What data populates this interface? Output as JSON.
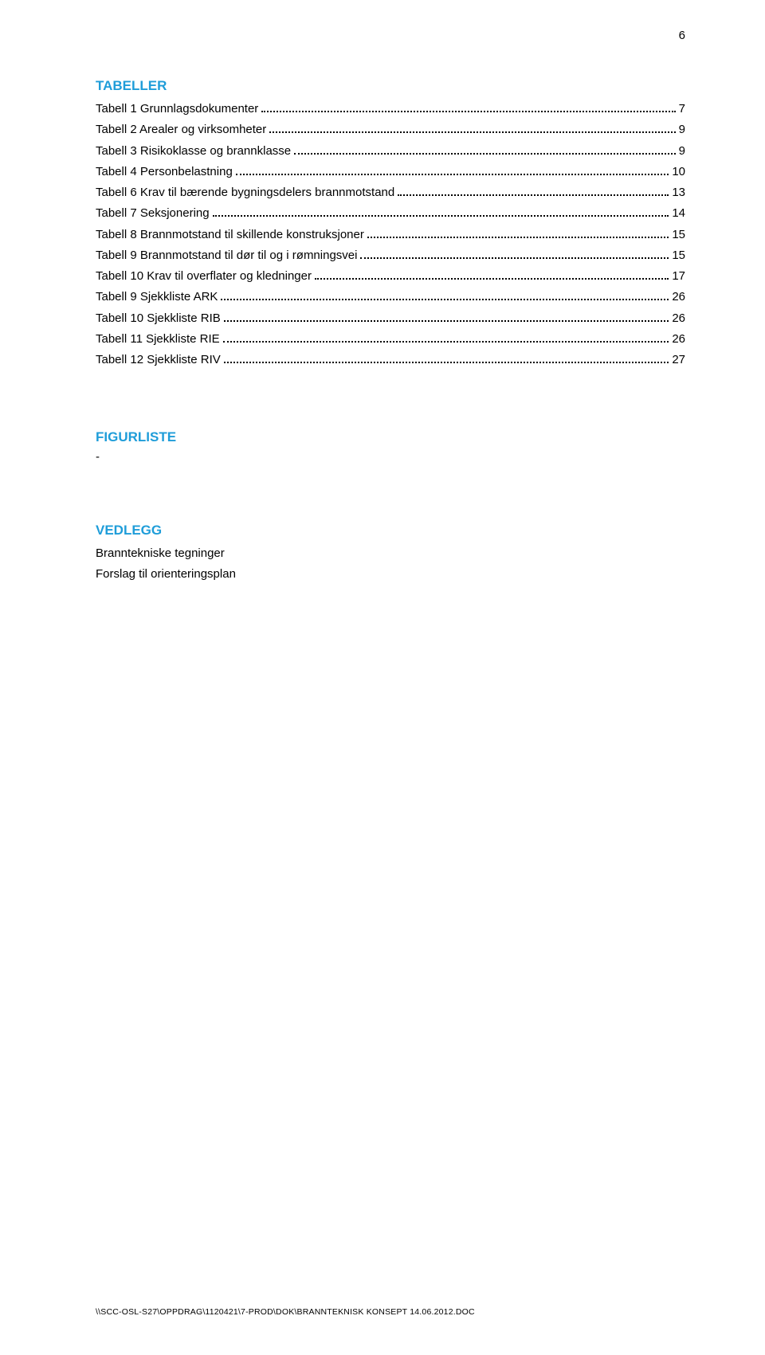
{
  "page_number": "6",
  "colors": {
    "heading": "#1f9dd9",
    "text": "#000000",
    "background": "#ffffff",
    "dot": "#000000"
  },
  "typography": {
    "body_font": "Verdana, Geneva, sans-serif",
    "body_size_pt": 11,
    "heading_size_pt": 13,
    "heading_weight": "bold",
    "footer_size_pt": 8
  },
  "sections": {
    "tabeller": {
      "title": "TABELLER",
      "entries": [
        {
          "label": "Tabell 1 Grunnlagsdokumenter",
          "page": "7"
        },
        {
          "label": "Tabell 2 Arealer og virksomheter",
          "page": "9"
        },
        {
          "label": "Tabell 3 Risikoklasse og brannklasse",
          "page": "9"
        },
        {
          "label": "Tabell 4 Personbelastning",
          "page": "10"
        },
        {
          "label": "Tabell 6 Krav til bærende bygningsdelers brannmotstand",
          "page": "13"
        },
        {
          "label": "Tabell 7 Seksjonering",
          "page": "14"
        },
        {
          "label": "Tabell 8 Brannmotstand til skillende konstruksjoner",
          "page": "15"
        },
        {
          "label": "Tabell 9 Brannmotstand til dør til og i rømningsvei",
          "page": "15"
        },
        {
          "label": "Tabell 10 Krav til overflater og kledninger",
          "page": "17"
        },
        {
          "label": "Tabell 9 Sjekkliste ARK",
          "page": "26"
        },
        {
          "label": "Tabell 10 Sjekkliste RIB",
          "page": "26"
        },
        {
          "label": "Tabell 11 Sjekkliste RIE",
          "page": "26"
        },
        {
          "label": "Tabell 12 Sjekkliste RIV",
          "page": "27"
        }
      ]
    },
    "figurliste": {
      "title": "FIGURLISTE",
      "dash": "-"
    },
    "vedlegg": {
      "title": "VEDLEGG",
      "lines": [
        "Branntekniske tegninger",
        "Forslag til orienteringsplan"
      ]
    }
  },
  "footer": "\\\\SCC-OSL-S27\\OPPDRAG\\1120421\\7-PROD\\DOK\\BRANNTEKNISK KONSEPT 14.06.2012.DOC"
}
